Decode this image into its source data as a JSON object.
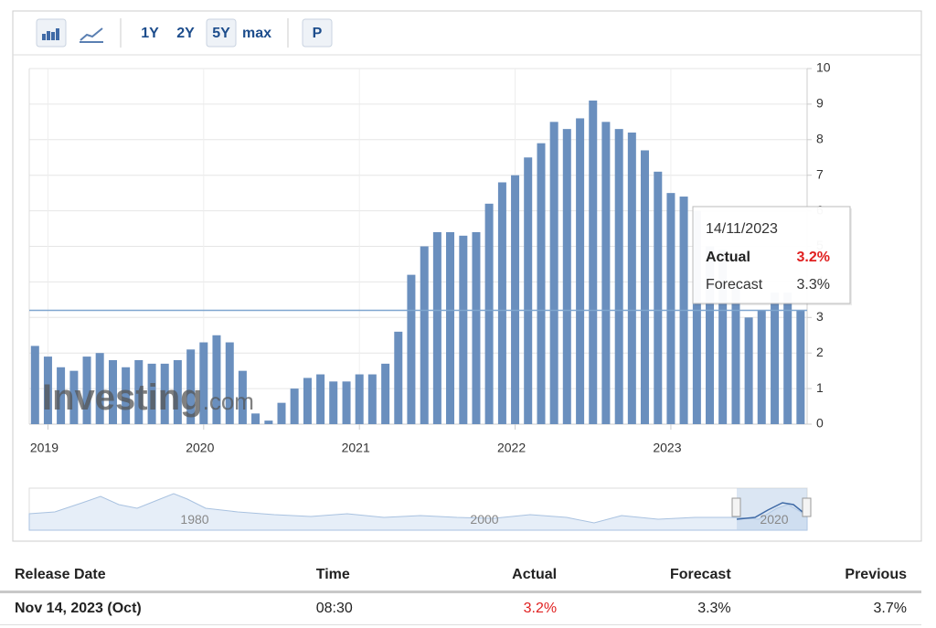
{
  "toolbar": {
    "ranges": [
      "1Y",
      "2Y",
      "5Y",
      "max"
    ],
    "print": "P"
  },
  "chart_data": {
    "type": "bar",
    "x": [
      2018.917,
      2019.0,
      2019.083,
      2019.167,
      2019.25,
      2019.333,
      2019.417,
      2019.5,
      2019.583,
      2019.667,
      2019.75,
      2019.833,
      2019.917,
      2020.0,
      2020.083,
      2020.167,
      2020.25,
      2020.333,
      2020.417,
      2020.5,
      2020.583,
      2020.667,
      2020.75,
      2020.833,
      2020.917,
      2021.0,
      2021.083,
      2021.167,
      2021.25,
      2021.333,
      2021.417,
      2021.5,
      2021.583,
      2021.667,
      2021.75,
      2021.833,
      2021.917,
      2022.0,
      2022.083,
      2022.167,
      2022.25,
      2022.333,
      2022.417,
      2022.5,
      2022.583,
      2022.667,
      2022.75,
      2022.833,
      2022.917,
      2023.0,
      2023.083,
      2023.167,
      2023.25,
      2023.333,
      2023.417,
      2023.5,
      2023.583,
      2023.667,
      2023.75,
      2023.833
    ],
    "values": [
      2.2,
      1.9,
      1.6,
      1.5,
      1.9,
      2.0,
      1.8,
      1.6,
      1.8,
      1.7,
      1.7,
      1.8,
      2.1,
      2.3,
      2.5,
      2.3,
      1.5,
      0.3,
      0.1,
      0.6,
      1.0,
      1.3,
      1.4,
      1.2,
      1.2,
      1.4,
      1.4,
      1.7,
      2.6,
      4.2,
      5.0,
      5.4,
      5.4,
      5.3,
      5.4,
      6.2,
      6.8,
      7.0,
      7.5,
      7.9,
      8.5,
      8.3,
      8.6,
      9.1,
      8.5,
      8.3,
      8.2,
      7.7,
      7.1,
      6.5,
      6.4,
      6.0,
      5.0,
      4.9,
      4.0,
      3.0,
      3.2,
      3.7,
      3.7,
      3.2
    ],
    "color": "#6a8fbe",
    "xlim": [
      2018.88,
      2023.875
    ],
    "xticks": [
      2019,
      2020,
      2021,
      2022,
      2023
    ],
    "ylim": [
      0,
      10
    ],
    "yticks": [
      0,
      1,
      2,
      3,
      4,
      5,
      6,
      7,
      8,
      9,
      10
    ],
    "grid": true,
    "watermark": {
      "brand": "Investing",
      "suffix": ".com"
    }
  },
  "navigator": {
    "labels": [
      "1980",
      "2000",
      "2020"
    ]
  },
  "tooltip": {
    "date": "14/11/2023",
    "actual_label": "Actual",
    "actual": "3.2%",
    "forecast_label": "Forecast",
    "forecast": "3.3%"
  },
  "table": {
    "headers": [
      "Release Date",
      "Time",
      "Actual",
      "Forecast",
      "Previous"
    ],
    "rows": [
      [
        "Nov 14, 2023 (Oct)",
        "08:30",
        "3.2%",
        "3.3%",
        "3.7%"
      ]
    ]
  }
}
